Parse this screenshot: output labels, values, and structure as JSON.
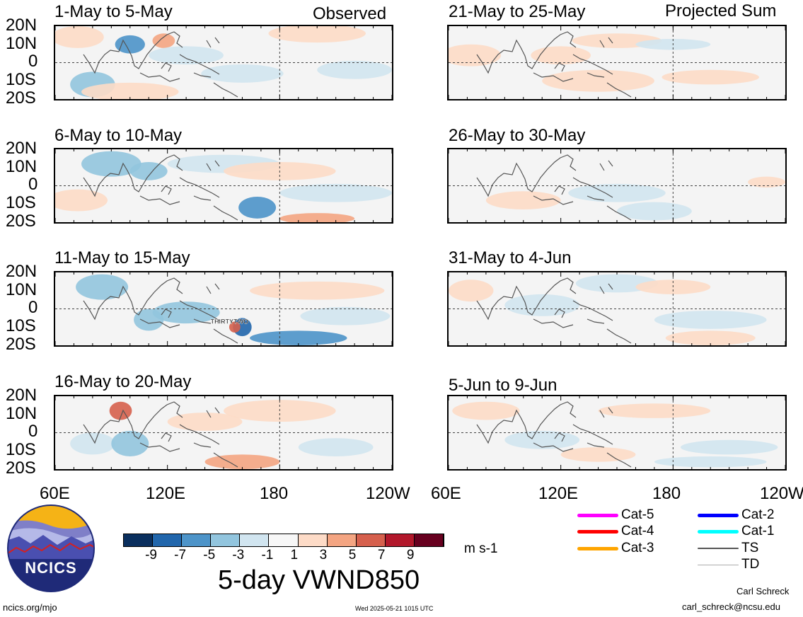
{
  "column_headers": {
    "left": "Observed",
    "right": "Projected Sum"
  },
  "panels": [
    {
      "title": "1-May to 5-May",
      "column": "left",
      "row": 0,
      "storms": []
    },
    {
      "title": "6-May to 10-May",
      "column": "left",
      "row": 1,
      "storms": []
    },
    {
      "title": "11-May to 15-May",
      "column": "left",
      "row": 2,
      "storms": [
        "THIRTYTWO"
      ]
    },
    {
      "title": "16-May to 20-May",
      "column": "left",
      "row": 3,
      "storms": []
    },
    {
      "title": "21-May to 25-May",
      "column": "right",
      "row": 0,
      "storms": []
    },
    {
      "title": "26-May to 30-May",
      "column": "right",
      "row": 1,
      "storms": []
    },
    {
      "title": "31-May to 4-Jun",
      "column": "right",
      "row": 2,
      "storms": []
    },
    {
      "title": "5-Jun to 9-Jun",
      "column": "right",
      "row": 3,
      "storms": []
    }
  ],
  "axes": {
    "y_ticks": [
      "20N",
      "10N",
      "0",
      "10S",
      "20S"
    ],
    "x_ticks_left": [
      "60E",
      "120E",
      "180",
      "120W"
    ],
    "x_ticks_right": [
      "60E",
      "120E",
      "180",
      "120W"
    ],
    "lat_range": [
      -20,
      20
    ],
    "lon_range": [
      60,
      240
    ]
  },
  "colorbar": {
    "labels": [
      "-9",
      "-7",
      "-5",
      "-3",
      "-1",
      "1",
      "3",
      "5",
      "7",
      "9"
    ],
    "colors": [
      "#0a2f5e",
      "#2166ac",
      "#4d94c9",
      "#92c5de",
      "#d1e5f0",
      "#f7f7f7",
      "#fddbc7",
      "#f4a582",
      "#d6604d",
      "#b2182b",
      "#67001f"
    ],
    "units": "m s-1"
  },
  "title": "5-day VWND850",
  "legend": [
    {
      "label": "Cat-5",
      "color": "#ff00ff"
    },
    {
      "label": "Cat-4",
      "color": "#ff0000"
    },
    {
      "label": "Cat-3",
      "color": "#ffa500"
    },
    {
      "label": "Cat-2",
      "color": "#0000ff"
    },
    {
      "label": "Cat-1",
      "color": "#00ffff"
    },
    {
      "label": "TS",
      "color": "#555555"
    },
    {
      "label": "TD",
      "color": "#aaaaaa"
    }
  ],
  "logo": {
    "text": "NCICS"
  },
  "footer": {
    "url": "ncics.org/mjo",
    "timestamp": "Wed 2025-05-21 1015 UTC",
    "author": "Carl Schreck",
    "email": "carl_schreck@ncsu.edu"
  }
}
